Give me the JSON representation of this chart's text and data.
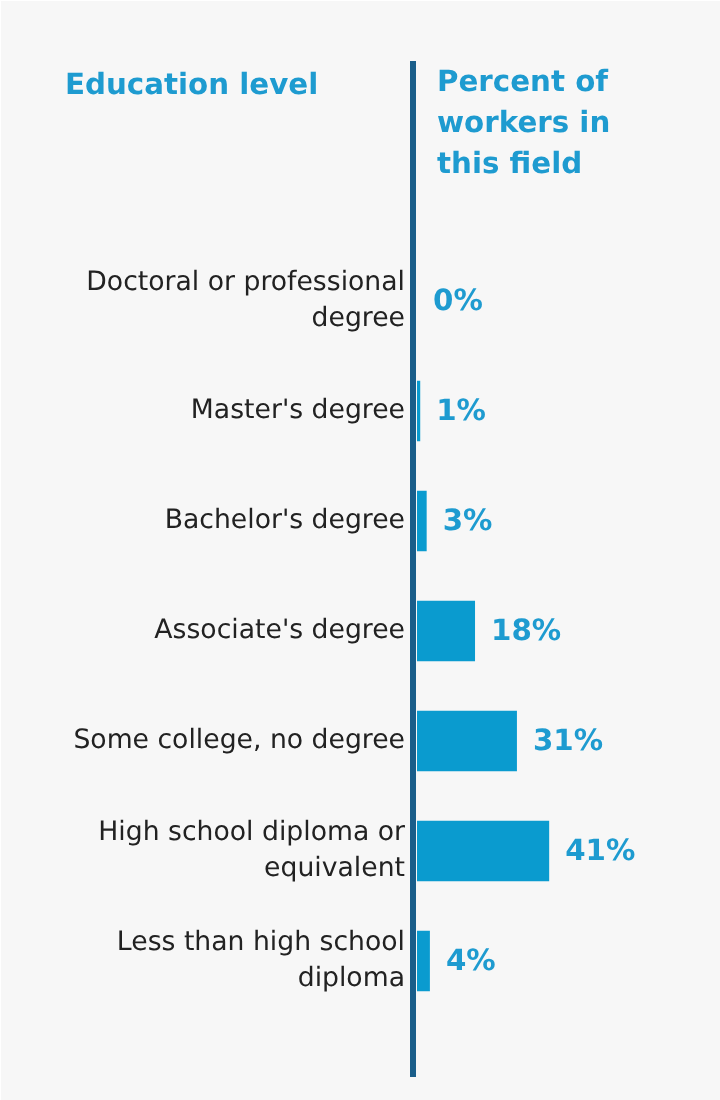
{
  "chart_data": {
    "type": "bar",
    "orientation": "horizontal",
    "ylabel": "Education level",
    "xlabel": "Percent of workers in this field",
    "categories": [
      "Doctoral or professional degree",
      "Master's degree",
      "Bachelor's degree",
      "Associate's degree",
      "Some college, no degree",
      "High school diploma or equivalent",
      "Less than high school diploma"
    ],
    "values": [
      0,
      1,
      3,
      18,
      31,
      41,
      4
    ],
    "value_labels": [
      "0%",
      "1%",
      "3%",
      "18%",
      "31%",
      "41%",
      "4%"
    ],
    "color": "#0a9bcf",
    "grid": false
  }
}
